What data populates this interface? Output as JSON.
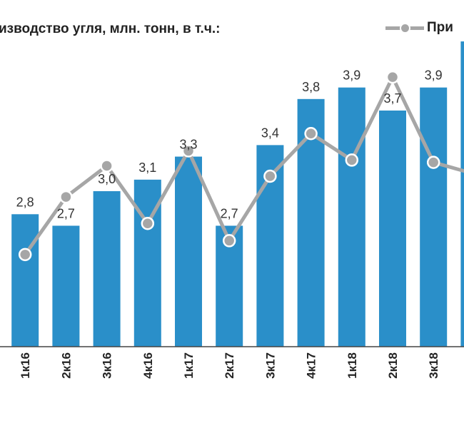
{
  "legend": {
    "title": "изводство угля, млн. тонн, в т.ч.:",
    "series_label": "При"
  },
  "colors": {
    "bar": "#2a8fc9",
    "line": "#a6a6a6",
    "axis": "#444444"
  },
  "chart_data": {
    "type": "bar",
    "title": "",
    "categories": [
      "",
      "1к16",
      "2к16",
      "3к16",
      "4к16",
      "1к17",
      "2к17",
      "3к17",
      "4к17",
      "1к18",
      "2к18",
      "3к18",
      ""
    ],
    "series": [
      {
        "name": "изводство угля, млн. тонн, в т.ч.:",
        "type": "bar",
        "values": [
          null,
          2.8,
          2.7,
          3.0,
          3.1,
          3.3,
          2.7,
          3.4,
          3.8,
          3.9,
          3.7,
          3.9,
          4.3
        ],
        "labels": [
          "",
          "2,8",
          "2,7",
          "3,0",
          "3,1",
          "3,3",
          "2,7",
          "3,4",
          "3,8",
          "3,9",
          "3,7",
          "3,9",
          ""
        ]
      },
      {
        "name": "При",
        "type": "line",
        "values": [
          null,
          2.45,
          2.95,
          3.22,
          2.72,
          3.35,
          2.57,
          3.13,
          3.5,
          3.27,
          3.99,
          3.25,
          3.15
        ]
      }
    ],
    "ylim": [
      1.65,
      4.35
    ],
    "xlabel": "",
    "ylabel": "",
    "grid": false,
    "legend_position": "top"
  }
}
